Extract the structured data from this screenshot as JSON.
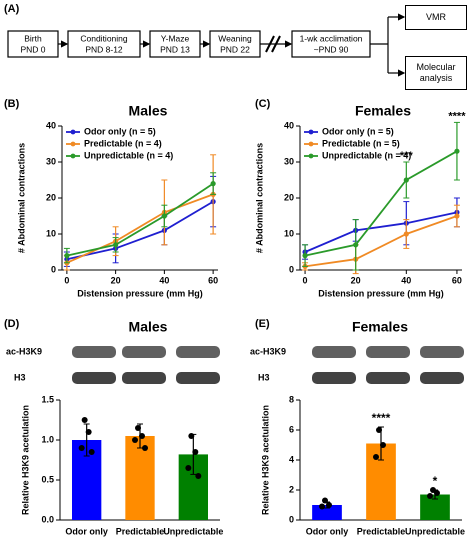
{
  "timeline": {
    "panel": "(A)",
    "steps": [
      {
        "title": "Birth",
        "sub": "PND 0"
      },
      {
        "title": "Conditioning",
        "sub": "PND 8-12"
      },
      {
        "title": "Y-Maze",
        "sub": "PND 13"
      },
      {
        "title": "Weaning",
        "sub": "PND 22"
      }
    ],
    "acclimation": {
      "title": "1-wk acclimation",
      "sub": "~PND 90"
    },
    "outcomes": [
      "VMR",
      "Molecular analysis"
    ]
  },
  "chart_data": [
    {
      "type": "line",
      "panel": "(B)",
      "title": "Males",
      "x_label": "Distension pressure (mm Hg)",
      "y_label": "# Abdominal contractions",
      "x": [
        0,
        20,
        40,
        60
      ],
      "xlim": [
        -2,
        62
      ],
      "xticks": [
        0,
        20,
        40,
        60
      ],
      "ylim": [
        0,
        40
      ],
      "yticks": [
        0,
        10,
        20,
        30,
        40
      ],
      "legend": "upper left",
      "series": [
        {
          "name": "Odor only (n = 5)",
          "color": "#1f1fd0",
          "values": [
            3,
            6,
            11,
            19
          ],
          "errors": [
            2,
            4,
            4,
            7
          ]
        },
        {
          "name": "Predictable (n = 4)",
          "color": "#f08a24",
          "values": [
            2,
            8,
            16,
            21
          ],
          "errors": [
            2,
            4,
            9,
            11
          ]
        },
        {
          "name": "Unpredictable (n = 4)",
          "color": "#2a9a2a",
          "values": [
            4,
            7,
            15,
            24
          ],
          "errors": [
            2,
            2,
            3,
            3
          ]
        }
      ]
    },
    {
      "type": "line",
      "panel": "(C)",
      "title": "Females",
      "x_label": "Distension pressure (mm Hg)",
      "y_label": "# Abdominal contractions",
      "x": [
        0,
        20,
        40,
        60
      ],
      "xlim": [
        -2,
        62
      ],
      "xticks": [
        0,
        20,
        40,
        60
      ],
      "ylim": [
        0,
        40
      ],
      "yticks": [
        0,
        10,
        20,
        30,
        40
      ],
      "legend": "upper left",
      "series": [
        {
          "name": "Odor only (n = 5)",
          "color": "#1f1fd0",
          "values": [
            5,
            11,
            13,
            16
          ],
          "errors": [
            2,
            3,
            6,
            4
          ]
        },
        {
          "name": "Predictable (n = 5)",
          "color": "#f08a24",
          "values": [
            1,
            3,
            10,
            15
          ],
          "errors": [
            1,
            4,
            4,
            3
          ]
        },
        {
          "name": "Unpredictable (n = 4)",
          "color": "#2a9a2a",
          "values": [
            4,
            7,
            25,
            33
          ],
          "errors": [
            3,
            7,
            5,
            8
          ]
        }
      ],
      "annotations": [
        {
          "x": 40,
          "label": "***"
        },
        {
          "x": 60,
          "label": "****"
        }
      ]
    },
    {
      "type": "bar",
      "panel": "(D)",
      "title": "Males",
      "blot_labels": [
        "ac-H3K9",
        "H3"
      ],
      "y_label": "Relative H3K9 acetulation",
      "categories": [
        "Odor only",
        "Predictable",
        "Unpredictable"
      ],
      "values": [
        1.0,
        1.05,
        0.82
      ],
      "errors": [
        0.2,
        0.15,
        0.25
      ],
      "colors": [
        "#0000ff",
        "#ff8c00",
        "#008000"
      ],
      "points": [
        [
          1.25,
          1.1,
          0.9,
          0.85
        ],
        [
          1.15,
          1.05,
          1.0,
          0.9
        ],
        [
          1.05,
          0.85,
          0.65,
          0.55
        ]
      ],
      "ylim": [
        0,
        1.5
      ],
      "yticks": [
        {
          "value": 0,
          "label": "0.0"
        },
        0.5,
        {
          "value": 1,
          "label": "1.0"
        },
        1.5
      ]
    },
    {
      "type": "bar",
      "panel": "(E)",
      "title": "Females",
      "blot_labels": [
        "ac-H3K9",
        "H3"
      ],
      "y_label": "Relative H3K9 acetulation",
      "categories": [
        "Odor only",
        "Predictable",
        "Unpredictable"
      ],
      "values": [
        1.0,
        5.1,
        1.7
      ],
      "errors": [
        0.2,
        1.1,
        0.3
      ],
      "colors": [
        "#0000ff",
        "#ff8c00",
        "#008000"
      ],
      "points": [
        [
          1.3,
          1.0,
          0.9
        ],
        [
          6.0,
          5.0,
          4.2
        ],
        [
          2.0,
          1.8,
          1.6
        ]
      ],
      "ylim": [
        0,
        8
      ],
      "yticks": [
        0,
        2,
        4,
        6,
        8
      ],
      "annotations": [
        {
          "category": "Predictable",
          "label": "****"
        },
        {
          "category": "Unpredictable",
          "label": "*"
        }
      ]
    }
  ]
}
